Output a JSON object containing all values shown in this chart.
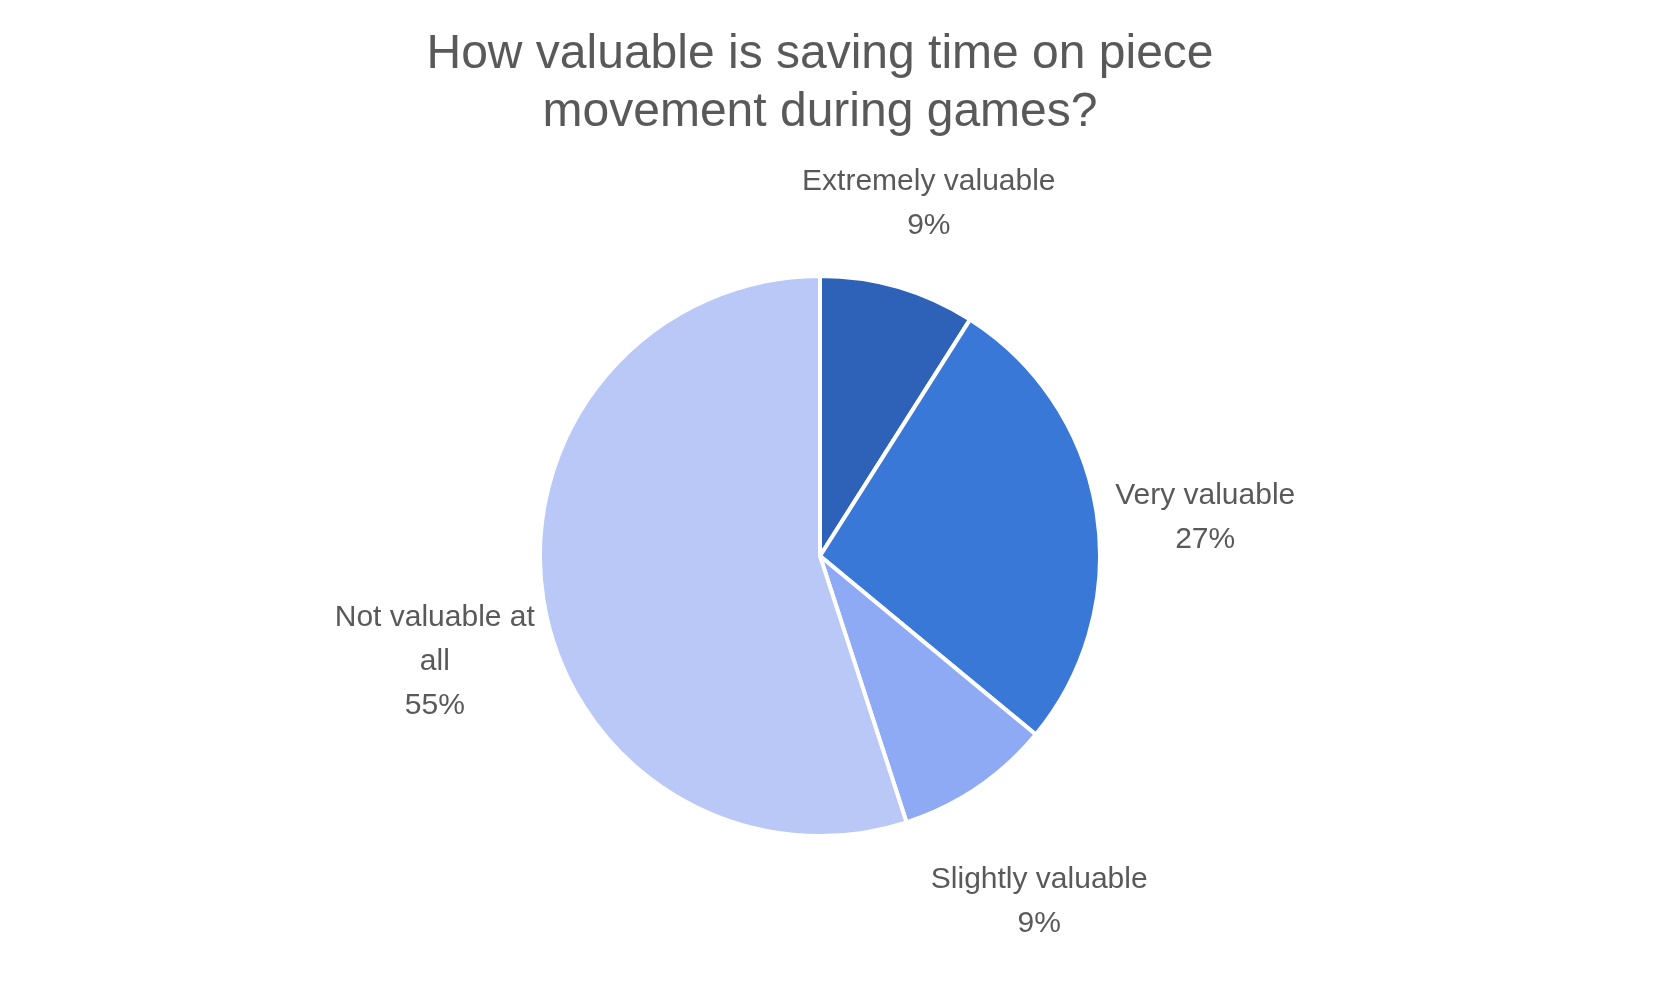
{
  "chart_data": {
    "type": "pie",
    "title": "How valuable is saving time on piece movement during games?",
    "categories": [
      "Extremely valuable",
      "Very valuable",
      "Slightly valuable",
      "Not valuable at all"
    ],
    "values": [
      9,
      27,
      9,
      55
    ],
    "colors": [
      "#2e62b8",
      "#3a78d8",
      "#8faaf5",
      "#bac8f8"
    ],
    "value_labels": [
      "9%",
      "27%",
      "9%",
      "55%"
    ],
    "legend": false
  }
}
